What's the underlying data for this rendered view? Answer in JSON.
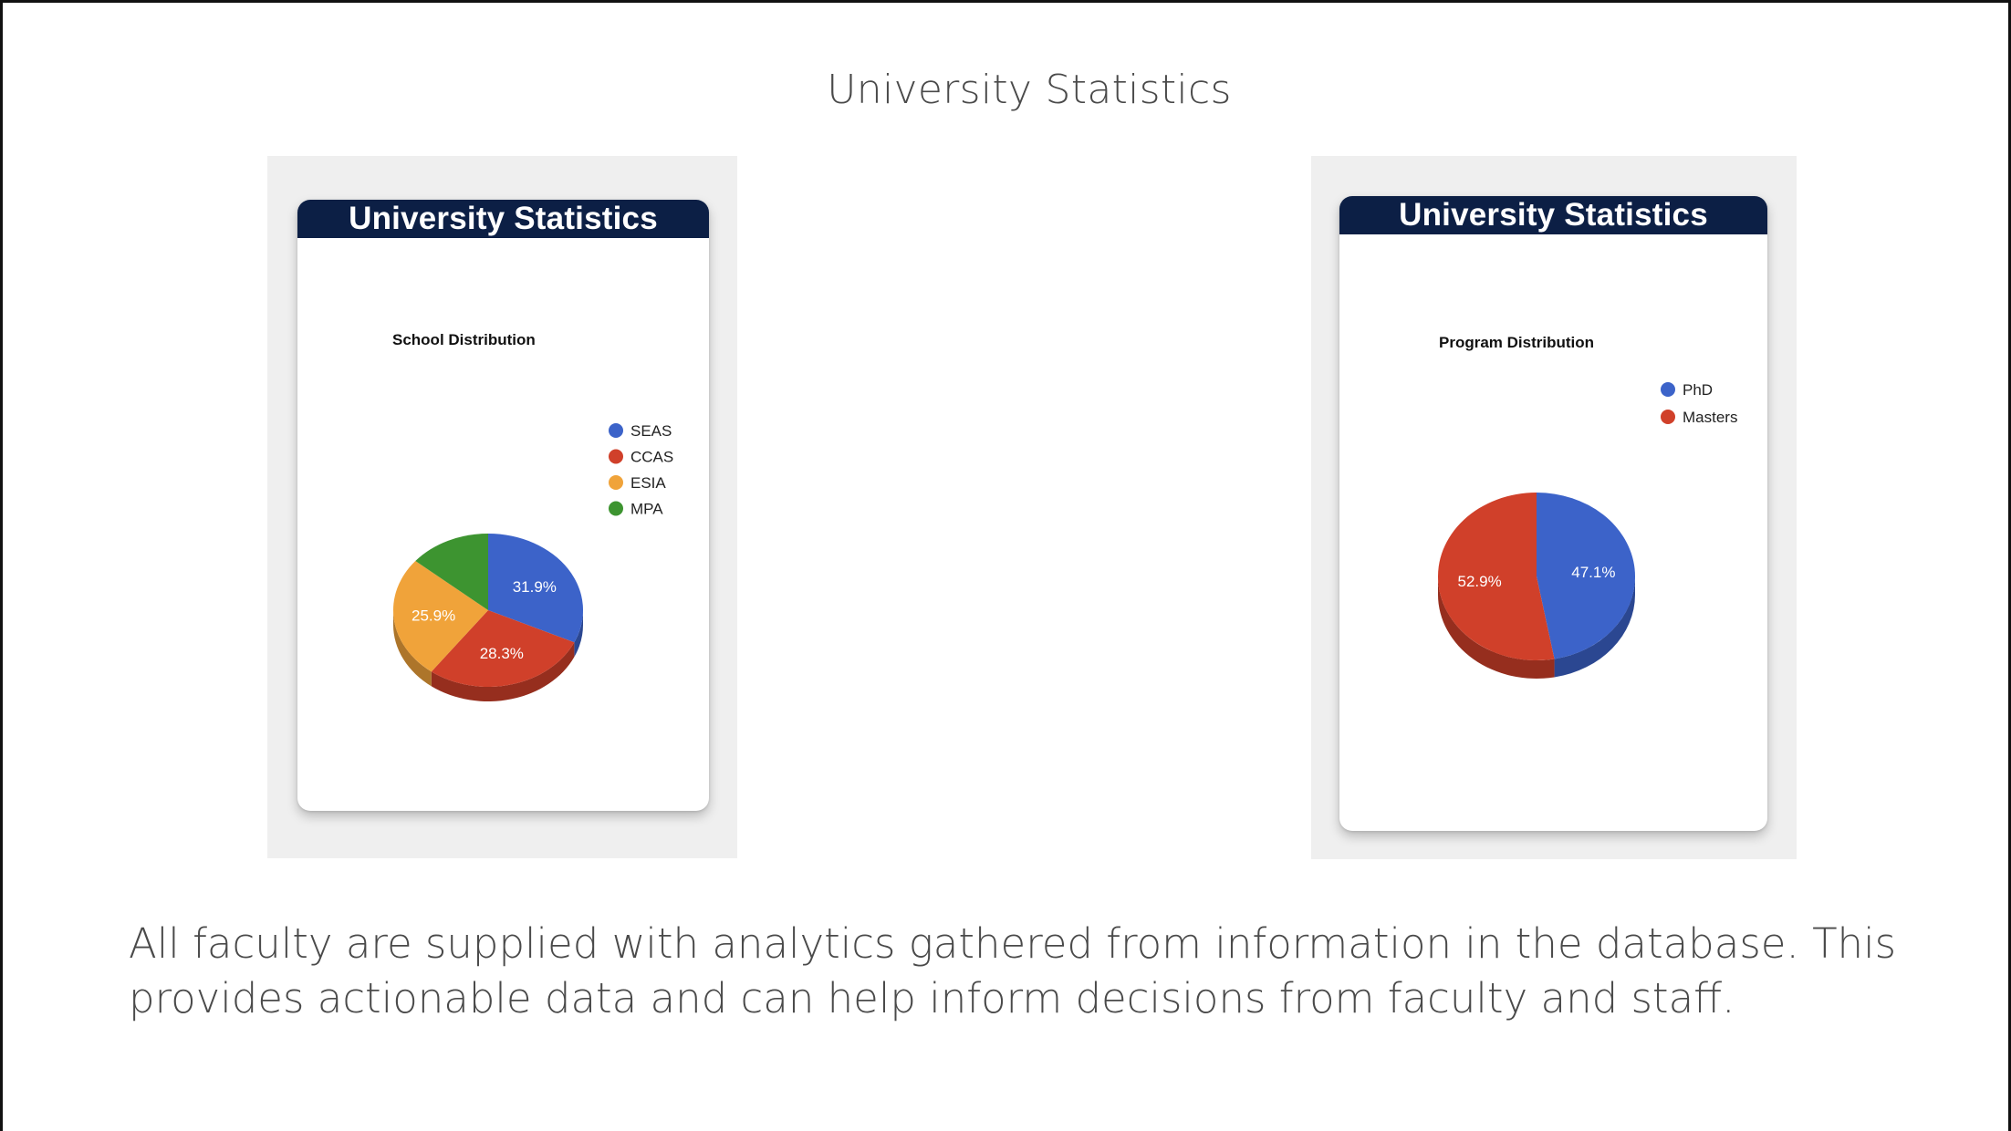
{
  "slide": {
    "title": "University Statistics",
    "caption": "All faculty are supplied with analytics gathered from information in the database. This provides actionable data and can help inform decisions from faculty and staff."
  },
  "cards": [
    {
      "header": "University Statistics"
    },
    {
      "header": "University Statistics"
    }
  ],
  "chart_data": [
    {
      "type": "pie",
      "style": "3d",
      "title": "School Distribution",
      "labels": [
        "SEAS",
        "CCAS",
        "ESIA",
        "MPA"
      ],
      "values": [
        31.9,
        28.3,
        25.9,
        13.9
      ],
      "value_labels": [
        "31.9%",
        "28.3%",
        "25.9%",
        ""
      ],
      "colors": [
        "#3c63c9",
        "#d0402a",
        "#f0a33a",
        "#3d9430"
      ],
      "legend_position": "top-right"
    },
    {
      "type": "pie",
      "style": "3d",
      "title": "Program Distribution",
      "labels": [
        "PhD",
        "Masters"
      ],
      "values": [
        47.1,
        52.9
      ],
      "value_labels": [
        "47.1%",
        "52.9%"
      ],
      "colors": [
        "#3c63c9",
        "#d0402a"
      ],
      "legend_position": "top-right"
    }
  ]
}
